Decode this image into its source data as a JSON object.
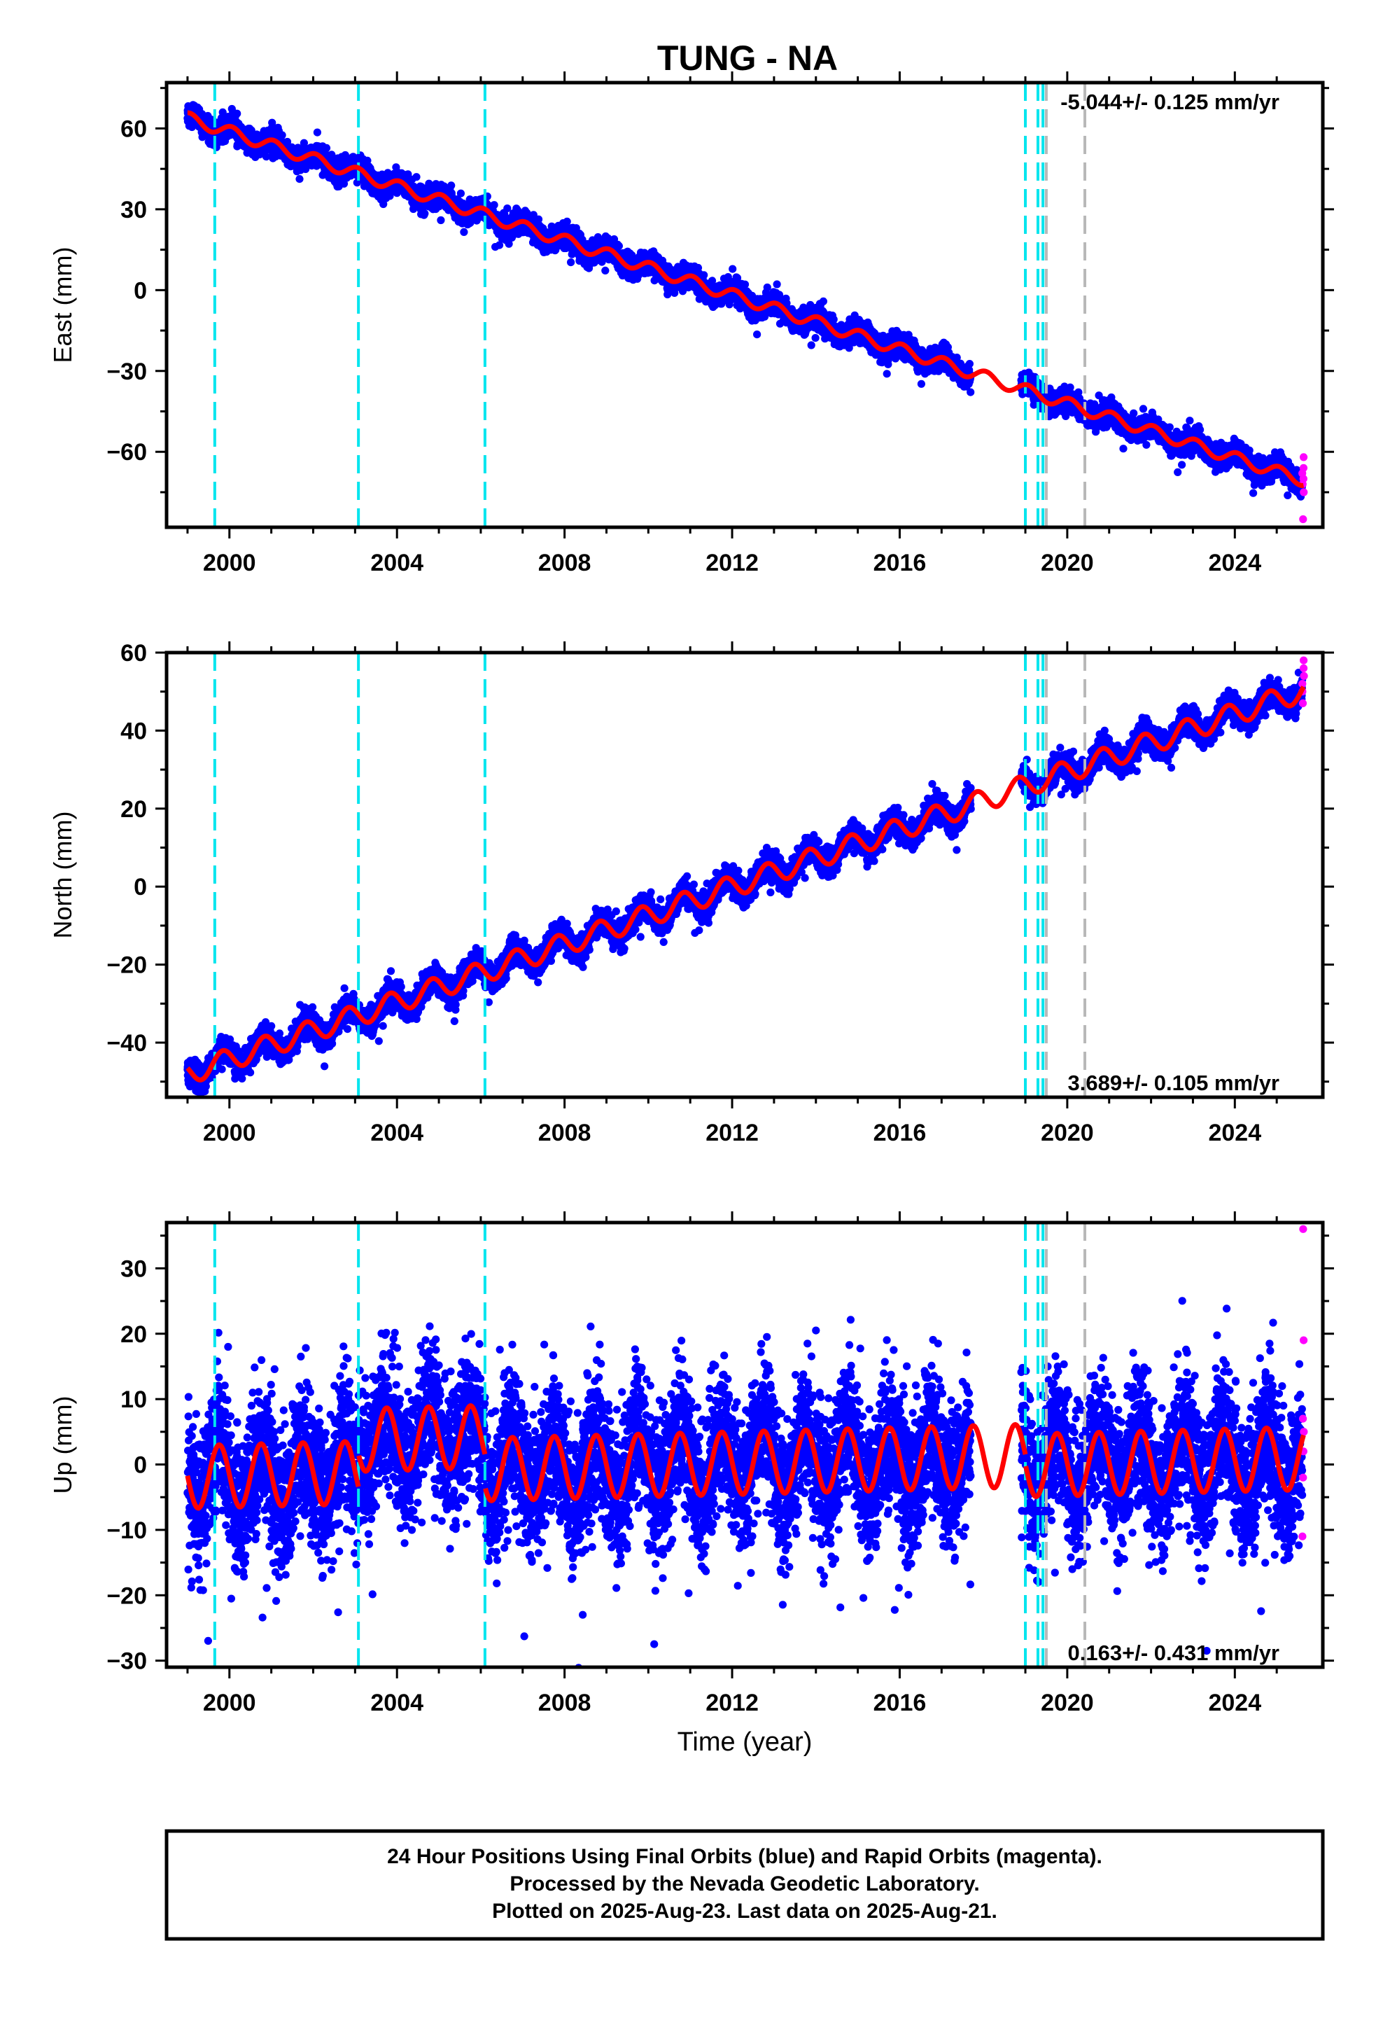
{
  "title": "TUNG - NA",
  "colors": {
    "final": "#0000ff",
    "rapid": "#ff00ff",
    "model": "#ff0000",
    "event_cyan": "#00e5ee",
    "event_gray": "#b8b8b8"
  },
  "x_axis": {
    "label": "Time (year)",
    "range": [
      1998.5,
      2026.1
    ],
    "ticks": [
      2000,
      2004,
      2008,
      2012,
      2016,
      2020,
      2024
    ],
    "tick_labels": [
      "2000",
      "2004",
      "2008",
      "2012",
      "2016",
      "2020",
      "2024"
    ]
  },
  "events": {
    "cyan": [
      1999.65,
      2003.08,
      2006.1,
      2019.0,
      2019.3,
      2019.42
    ],
    "gray": [
      2019.5,
      2020.42
    ]
  },
  "data_span": {
    "start": 1999.0,
    "end": 2025.64
  },
  "gap": [
    2017.7,
    2018.9
  ],
  "caption": [
    "24 Hour Positions Using Final Orbits (blue) and Rapid Orbits (magenta).",
    "Processed by the Nevada Geodetic Laboratory.",
    "Plotted on 2025-Aug-23. Last data on 2025-Aug-21."
  ],
  "chart_data": [
    {
      "type": "scatter",
      "component": "East",
      "ylabel": "East (mm)",
      "ylim": [
        -88,
        77
      ],
      "yticks": [
        60,
        30,
        0,
        -30,
        -60
      ],
      "rate_label": "-5.044+/- 0.125 mm/yr",
      "rate_position": "top-right",
      "model": {
        "rate": -5.044,
        "intercept_2012": -1.8,
        "annual_amp": 2.2,
        "phase": 1.2,
        "steps": []
      },
      "scatter_sigma": 2.0,
      "rapid_values": [
        -66,
        -68,
        -70,
        -72,
        -62,
        -75,
        -85
      ]
    },
    {
      "type": "scatter",
      "component": "North",
      "ylabel": "North (mm)",
      "ylim": [
        -54,
        60
      ],
      "yticks": [
        60,
        40,
        20,
        0,
        -20,
        -40
      ],
      "rate_label": "3.689+/- 0.105 mm/yr",
      "rate_position": "bottom-right",
      "model": {
        "rate": 3.689,
        "intercept_2012": 0.0,
        "annual_amp": 2.8,
        "phase": 2.6,
        "steps": []
      },
      "scatter_sigma": 1.6,
      "rapid_values": [
        50,
        52,
        54,
        56,
        58,
        47
      ]
    },
    {
      "type": "scatter",
      "component": "Up",
      "ylabel": "Up (mm)",
      "ylim": [
        -31,
        37
      ],
      "yticks": [
        30,
        20,
        10,
        0,
        -10,
        -20,
        -30
      ],
      "rate_label": "0.163+/- 0.431 mm/yr",
      "rate_position": "bottom-right",
      "model": {
        "rate": 0.163,
        "intercept_2012": 0.2,
        "annual_amp": 4.8,
        "phase": 3.1,
        "steps": [
          {
            "start": 1998.5,
            "end": 2003.08,
            "offset": 0.0
          },
          {
            "start": 2003.08,
            "end": 2006.1,
            "offset": 5.0
          },
          {
            "start": 2006.1,
            "end": 2019.0,
            "offset": 0.0
          },
          {
            "start": 2019.0,
            "end": 2026.1,
            "offset": -1.5
          }
        ]
      },
      "scatter_sigma": 5.2,
      "rapid_values": [
        36,
        19,
        7,
        5,
        2,
        -2,
        -11
      ]
    }
  ]
}
